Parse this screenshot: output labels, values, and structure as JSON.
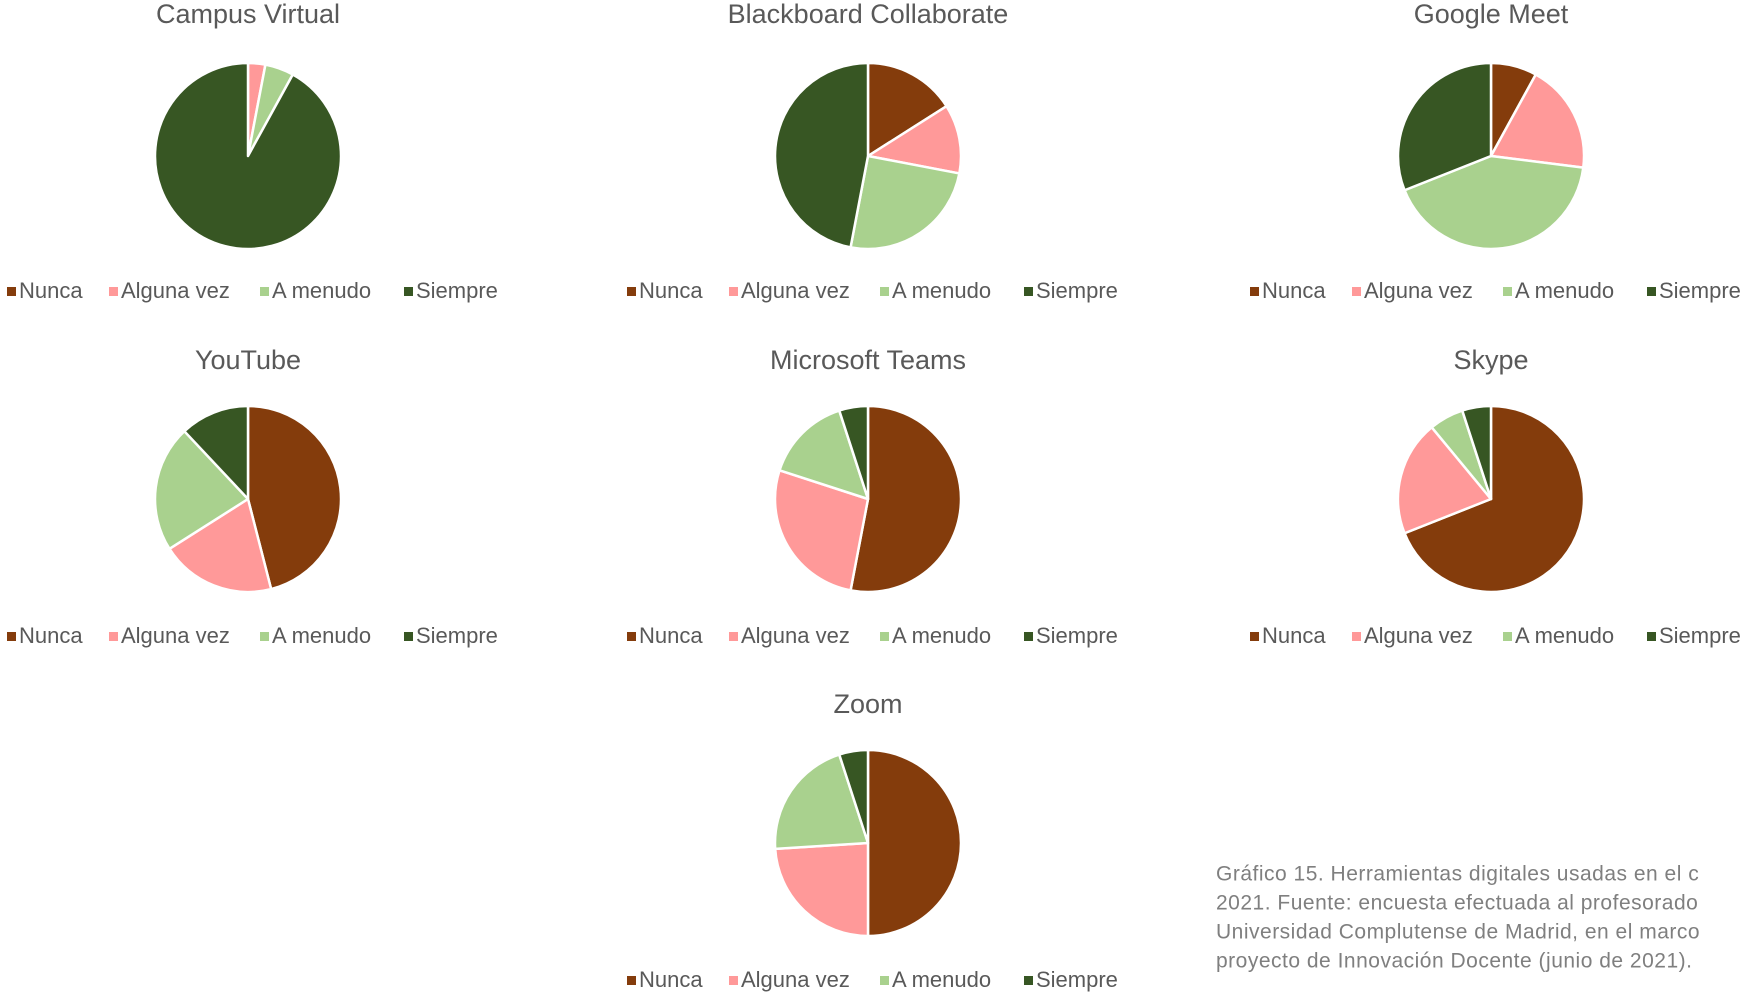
{
  "chart_data": [
    {
      "type": "pie",
      "title": "Campus Virtual",
      "categories": [
        "Nunca",
        "Alguna vez",
        "A menudo",
        "Siempre"
      ],
      "values": [
        0,
        3,
        5,
        92
      ],
      "colors": [
        "#843c0c",
        "#ff9999",
        "#a9d18e",
        "#375623"
      ]
    },
    {
      "type": "pie",
      "title": "Blackboard Collaborate",
      "categories": [
        "Nunca",
        "Alguna vez",
        "A menudo",
        "Siempre"
      ],
      "values": [
        16,
        12,
        25,
        47
      ],
      "colors": [
        "#843c0c",
        "#ff9999",
        "#a9d18e",
        "#375623"
      ]
    },
    {
      "type": "pie",
      "title": "Google Meet",
      "categories": [
        "Nunca",
        "Alguna vez",
        "A menudo",
        "Siempre"
      ],
      "values": [
        8,
        19,
        42,
        31
      ],
      "colors": [
        "#843c0c",
        "#ff9999",
        "#a9d18e",
        "#375623"
      ]
    },
    {
      "type": "pie",
      "title": "YouTube",
      "categories": [
        "Nunca",
        "Alguna vez",
        "A menudo",
        "Siempre"
      ],
      "values": [
        46,
        20,
        22,
        12
      ],
      "colors": [
        "#843c0c",
        "#ff9999",
        "#a9d18e",
        "#375623"
      ]
    },
    {
      "type": "pie",
      "title": "Microsoft Teams",
      "categories": [
        "Nunca",
        "Alguna vez",
        "A menudo",
        "Siempre"
      ],
      "values": [
        53,
        27,
        15,
        5
      ],
      "colors": [
        "#843c0c",
        "#ff9999",
        "#a9d18e",
        "#375623"
      ]
    },
    {
      "type": "pie",
      "title": "Skype",
      "categories": [
        "Nunca",
        "Alguna vez",
        "A menudo",
        "Siempre"
      ],
      "values": [
        69,
        20,
        6,
        5
      ],
      "colors": [
        "#843c0c",
        "#ff9999",
        "#a9d18e",
        "#375623"
      ]
    },
    {
      "type": "pie",
      "title": "Zoom",
      "categories": [
        "Nunca",
        "Alguna vez",
        "A menudo",
        "Siempre"
      ],
      "values": [
        50,
        24,
        21,
        5
      ],
      "colors": [
        "#843c0c",
        "#ff9999",
        "#a9d18e",
        "#375623"
      ]
    }
  ],
  "caption": [
    "Gráfico 15. Herramientas digitales usadas en el c",
    "2021. Fuente: encuesta efectuada al profesorado",
    "Universidad Complutense de Madrid, en el marco",
    "proyecto de Innovación Docente (junio de 2021)."
  ]
}
